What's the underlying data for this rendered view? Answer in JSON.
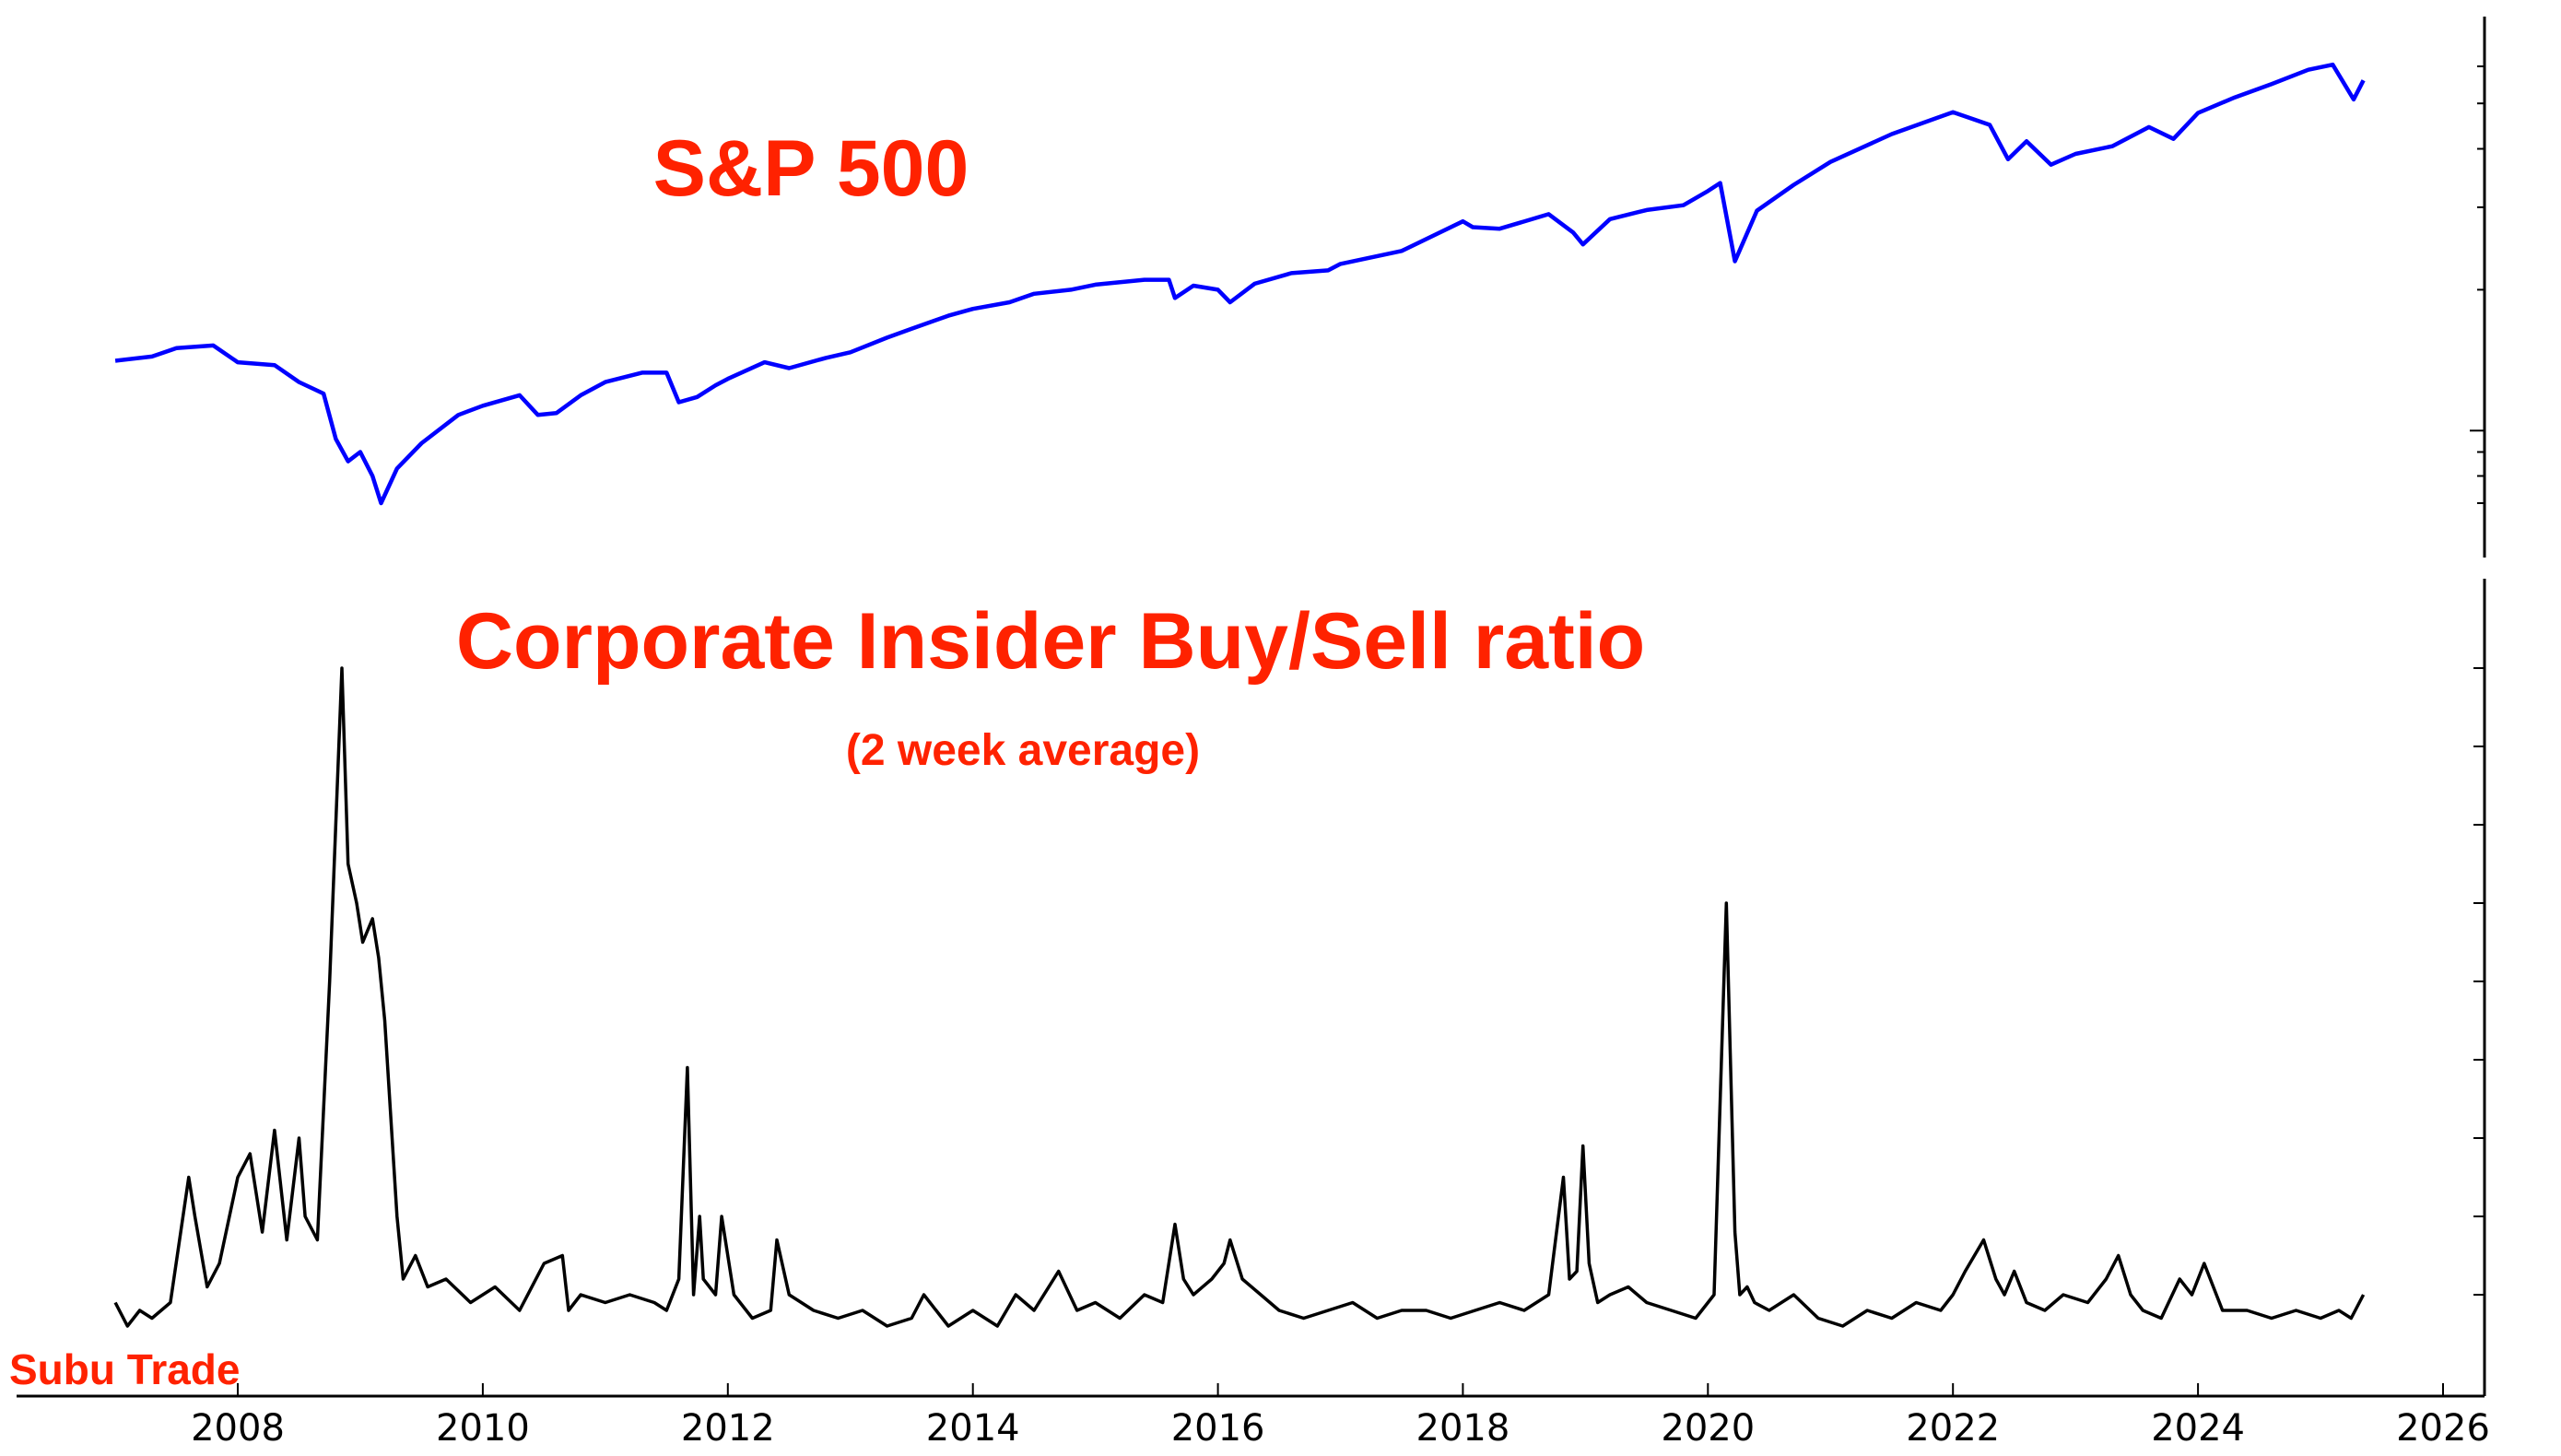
{
  "colors": {
    "title": "#ff2200",
    "sp500_line": "#0000ff",
    "ratio_line": "#000000",
    "axis": "#000000",
    "background": "#ffffff"
  },
  "watermark": "Subu Trade",
  "chart_data": [
    {
      "type": "line",
      "title": "S&P 500",
      "subtitle": "",
      "xlabel": "",
      "ylabel": "",
      "y_scale": "log",
      "xlim": [
        2007.0,
        2026.3
      ],
      "ylim": [
        600,
        7000
      ],
      "y_tick_labels_shown": false,
      "grid": false,
      "series": [
        {
          "x": [
            2007.0,
            2007.3,
            2007.5,
            2007.8,
            2008.0,
            2008.3,
            2008.5,
            2008.7,
            2008.8,
            2008.9,
            2009.0,
            2009.1,
            2009.17,
            2009.3,
            2009.5,
            2009.8,
            2010.0,
            2010.3,
            2010.45,
            2010.6,
            2010.8,
            2011.0,
            2011.3,
            2011.5,
            2011.6,
            2011.75,
            2011.9,
            2012.0,
            2012.3,
            2012.5,
            2012.8,
            2013.0,
            2013.3,
            2013.5,
            2013.8,
            2014.0,
            2014.3,
            2014.5,
            2014.8,
            2015.0,
            2015.4,
            2015.6,
            2015.65,
            2015.8,
            2016.0,
            2016.1,
            2016.3,
            2016.6,
            2016.9,
            2017.0,
            2017.5,
            2018.0,
            2018.08,
            2018.3,
            2018.7,
            2018.9,
            2018.98,
            2019.2,
            2019.5,
            2019.8,
            2020.0,
            2020.1,
            2020.22,
            2020.4,
            2020.7,
            2021.0,
            2021.5,
            2022.0,
            2022.3,
            2022.45,
            2022.6,
            2022.8,
            2023.0,
            2023.3,
            2023.6,
            2023.8,
            2024.0,
            2024.3,
            2024.6,
            2024.9,
            2025.1,
            2025.27,
            2025.35
          ],
          "y": [
            1410,
            1440,
            1500,
            1520,
            1400,
            1380,
            1270,
            1200,
            960,
            860,
            900,
            800,
            700,
            830,
            940,
            1080,
            1130,
            1190,
            1080,
            1090,
            1190,
            1270,
            1330,
            1330,
            1150,
            1180,
            1250,
            1290,
            1400,
            1360,
            1430,
            1470,
            1580,
            1650,
            1760,
            1820,
            1880,
            1960,
            2000,
            2050,
            2100,
            2100,
            1920,
            2040,
            2000,
            1880,
            2060,
            2170,
            2200,
            2270,
            2420,
            2800,
            2720,
            2700,
            2900,
            2650,
            2500,
            2830,
            2960,
            3030,
            3250,
            3380,
            2300,
            2950,
            3350,
            3750,
            4300,
            4790,
            4500,
            3800,
            4150,
            3700,
            3900,
            4050,
            4450,
            4200,
            4770,
            5150,
            5500,
            5900,
            6050,
            5100,
            5600
          ]
        }
      ]
    },
    {
      "type": "line",
      "title": "Corporate Insider Buy/Sell ratio",
      "subtitle": "(2 week average)",
      "xlabel": "",
      "ylabel": "",
      "xlim": [
        2007.0,
        2026.3
      ],
      "ylim": [
        0,
        1.0
      ],
      "y_tick_labels_shown": false,
      "x_ticks": [
        2008,
        2010,
        2012,
        2014,
        2016,
        2018,
        2020,
        2022,
        2024,
        2026
      ],
      "x_tick_labels": [
        "2008",
        "2010",
        "2012",
        "2014",
        "2016",
        "2018",
        "2020",
        "2022",
        "2024",
        "2026"
      ],
      "grid": false,
      "series": [
        {
          "x": [
            2007.0,
            2007.1,
            2007.2,
            2007.3,
            2007.45,
            2007.6,
            2007.65,
            2007.75,
            2007.85,
            2008.0,
            2008.1,
            2008.2,
            2008.3,
            2008.4,
            2008.5,
            2008.55,
            2008.65,
            2008.75,
            2008.85,
            2008.9,
            2008.97,
            2009.02,
            2009.1,
            2009.15,
            2009.2,
            2009.3,
            2009.35,
            2009.45,
            2009.55,
            2009.7,
            2009.9,
            2010.1,
            2010.3,
            2010.5,
            2010.65,
            2010.7,
            2010.8,
            2011.0,
            2011.2,
            2011.4,
            2011.5,
            2011.6,
            2011.67,
            2011.72,
            2011.77,
            2011.8,
            2011.9,
            2011.95,
            2012.05,
            2012.2,
            2012.35,
            2012.4,
            2012.5,
            2012.7,
            2012.9,
            2013.1,
            2013.3,
            2013.5,
            2013.6,
            2013.8,
            2014.0,
            2014.2,
            2014.35,
            2014.5,
            2014.7,
            2014.85,
            2015.0,
            2015.2,
            2015.4,
            2015.55,
            2015.65,
            2015.72,
            2015.8,
            2015.95,
            2016.05,
            2016.1,
            2016.2,
            2016.35,
            2016.5,
            2016.7,
            2016.9,
            2017.1,
            2017.3,
            2017.5,
            2017.7,
            2017.9,
            2018.1,
            2018.3,
            2018.5,
            2018.7,
            2018.82,
            2018.87,
            2018.93,
            2018.98,
            2019.03,
            2019.1,
            2019.2,
            2019.35,
            2019.5,
            2019.7,
            2019.9,
            2020.05,
            2020.15,
            2020.22,
            2020.26,
            2020.32,
            2020.38,
            2020.5,
            2020.7,
            2020.9,
            2021.1,
            2021.3,
            2021.5,
            2021.7,
            2021.9,
            2022.0,
            2022.1,
            2022.25,
            2022.35,
            2022.42,
            2022.5,
            2022.6,
            2022.75,
            2022.9,
            2023.1,
            2023.25,
            2023.35,
            2023.45,
            2023.55,
            2023.7,
            2023.85,
            2023.95,
            2024.05,
            2024.2,
            2024.4,
            2024.6,
            2024.8,
            2025.0,
            2025.15,
            2025.25,
            2025.35
          ],
          "y": [
            0.09,
            0.06,
            0.08,
            0.07,
            0.09,
            0.25,
            0.2,
            0.11,
            0.14,
            0.25,
            0.28,
            0.18,
            0.31,
            0.17,
            0.3,
            0.2,
            0.17,
            0.5,
            0.9,
            0.65,
            0.6,
            0.55,
            0.58,
            0.53,
            0.45,
            0.2,
            0.12,
            0.15,
            0.11,
            0.12,
            0.09,
            0.11,
            0.08,
            0.14,
            0.15,
            0.08,
            0.1,
            0.09,
            0.1,
            0.09,
            0.08,
            0.12,
            0.39,
            0.1,
            0.2,
            0.12,
            0.1,
            0.2,
            0.1,
            0.07,
            0.08,
            0.17,
            0.1,
            0.08,
            0.07,
            0.08,
            0.06,
            0.07,
            0.1,
            0.06,
            0.08,
            0.06,
            0.1,
            0.08,
            0.13,
            0.08,
            0.09,
            0.07,
            0.1,
            0.09,
            0.19,
            0.12,
            0.1,
            0.12,
            0.14,
            0.17,
            0.12,
            0.1,
            0.08,
            0.07,
            0.08,
            0.09,
            0.07,
            0.08,
            0.08,
            0.07,
            0.08,
            0.09,
            0.08,
            0.1,
            0.25,
            0.12,
            0.13,
            0.29,
            0.14,
            0.09,
            0.1,
            0.11,
            0.09,
            0.08,
            0.07,
            0.1,
            0.6,
            0.18,
            0.1,
            0.11,
            0.09,
            0.08,
            0.1,
            0.07,
            0.06,
            0.08,
            0.07,
            0.09,
            0.08,
            0.1,
            0.13,
            0.17,
            0.12,
            0.1,
            0.13,
            0.09,
            0.08,
            0.1,
            0.09,
            0.12,
            0.15,
            0.1,
            0.08,
            0.07,
            0.12,
            0.1,
            0.14,
            0.08,
            0.08,
            0.07,
            0.08,
            0.07,
            0.08,
            0.07,
            0.1
          ]
        }
      ]
    }
  ]
}
